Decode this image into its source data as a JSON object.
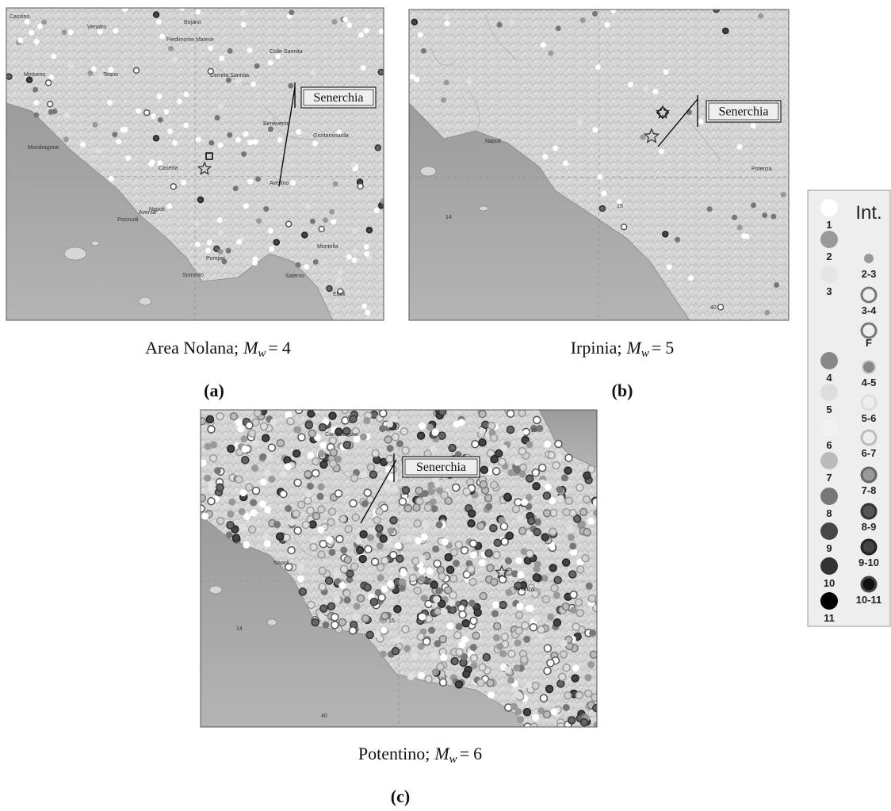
{
  "panels": [
    {
      "callout": "Senerchia",
      "places": [
        "Cassino",
        "Venafro",
        "Bojano",
        "Piedimonte Matese",
        "Teano",
        "Cerreto Sannita",
        "Colle Sannita",
        "Minturno",
        "Mondragone",
        "Caserta",
        "Benevento",
        "Grottaminarda",
        "Aversa",
        "Avellino",
        "Napoli",
        "Pozzuoli",
        "Pompei",
        "Montella",
        "Salerno",
        "Sorrento",
        "Eboli"
      ],
      "caption": {
        "text": "Area Nolana;",
        "symbol": "M",
        "subscript": "w",
        "relation": "=",
        "magnitude": 4
      },
      "label": "(a)"
    },
    {
      "callout": "Senerchia",
      "places": [
        "Napoli",
        "Potenza",
        "14",
        "15",
        "40"
      ],
      "caption": {
        "text": "Irpinia;",
        "symbol": "M",
        "subscript": "w",
        "relation": "=",
        "magnitude": 5
      },
      "label": "(b)"
    },
    {
      "callout": "Senerchia",
      "places": [
        "Campobasso",
        "Napoli",
        "Potenza",
        "16",
        "14",
        "15",
        "40"
      ],
      "caption": {
        "text": "Potentino;",
        "symbol": "M",
        "subscript": "w",
        "relation": "=",
        "magnitude": 6
      },
      "label": "(c)"
    }
  ],
  "legend": {
    "title": "Int.",
    "left": [
      "1",
      "2",
      "3",
      "4",
      "5",
      "6",
      "7",
      "8",
      "9",
      "10",
      "11"
    ],
    "right": [
      "2-3",
      "3-4",
      "F",
      "4-5",
      "5-6",
      "6-7",
      "7-8",
      "8-9",
      "9-10",
      "10-11"
    ]
  }
}
